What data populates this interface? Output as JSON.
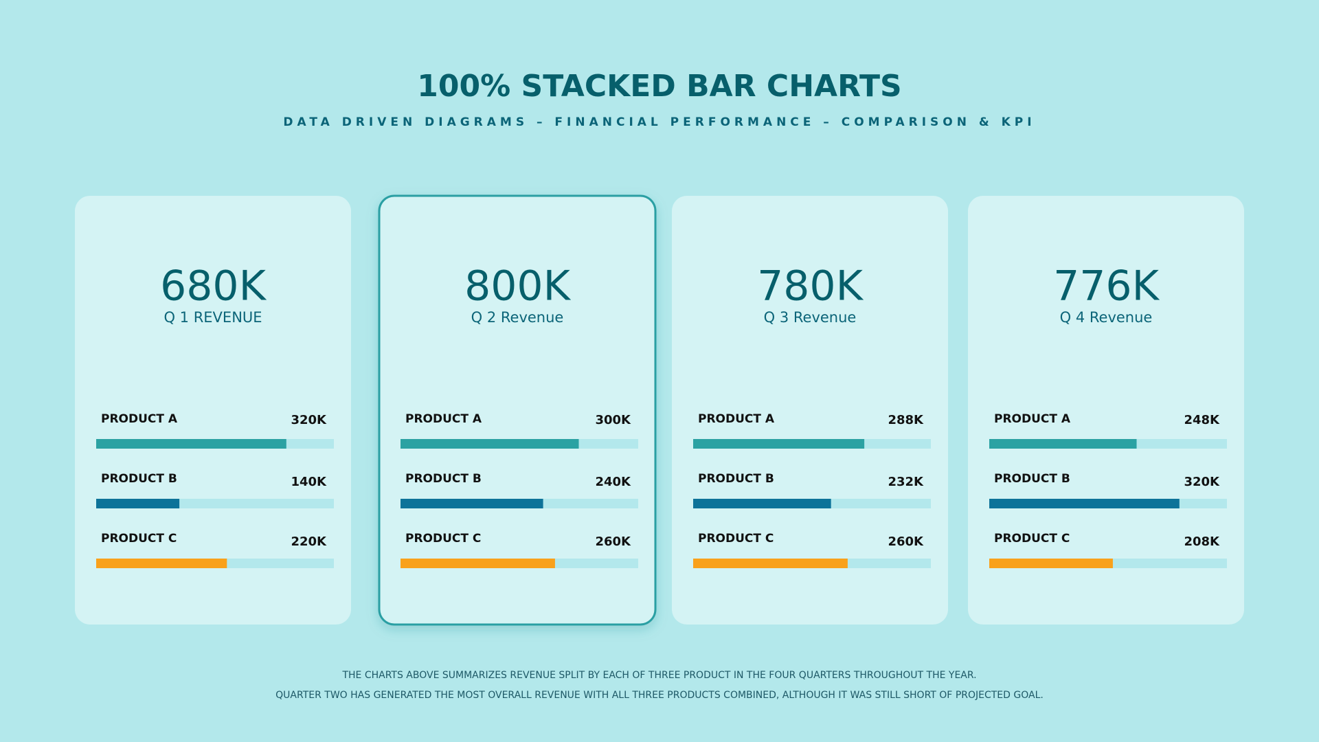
{
  "title": "100% STACKED BAR CHARTS",
  "subtitle": "DATA DRIVEN DIAGRAMS – FINANCIAL PERFORMANCE – COMPARISON & KPI",
  "notes": [
    "THE CHARTS ABOVE SUMMARIZES REVENUE SPLIT BY EACH OF THREE PRODUCT IN THE FOUR QUARTERS THROUGHOUT THE YEAR.",
    "QUARTER TWO HAS GENERATED THE MOST OVERALL REVENUE WITH ALL THREE PRODUCTS COMBINED, ALTHOUGH IT WAS STILL SHORT OF PROJECTED GOAL."
  ],
  "chart_data": [
    {
      "type": "bar",
      "orientation": "horizontal",
      "title": "680K",
      "subtitle": "Q 1 REVENUE",
      "highlight": false,
      "categories": [
        "PRODUCT A",
        "PRODUCT B",
        "PRODUCT C"
      ],
      "values": [
        320000,
        140000,
        220000
      ],
      "value_labels": [
        "320K",
        "140K",
        "220K"
      ],
      "colors": [
        "#2ba2a3",
        "#0d7399",
        "#f9a11b"
      ],
      "xlim": [
        0,
        400000
      ]
    },
    {
      "type": "bar",
      "orientation": "horizontal",
      "title": "800K",
      "subtitle": "Q 2 Revenue",
      "highlight": true,
      "categories": [
        "PRODUCT A",
        "PRODUCT B",
        "PRODUCT C"
      ],
      "values": [
        300000,
        240000,
        260000
      ],
      "value_labels": [
        "300K",
        "240K",
        "260K"
      ],
      "colors": [
        "#2ba2a3",
        "#0d7399",
        "#f9a11b"
      ],
      "xlim": [
        0,
        400000
      ]
    },
    {
      "type": "bar",
      "orientation": "horizontal",
      "title": "780K",
      "subtitle": "Q 3 Revenue",
      "highlight": false,
      "categories": [
        "PRODUCT A",
        "PRODUCT B",
        "PRODUCT C"
      ],
      "values": [
        288000,
        232000,
        260000
      ],
      "value_labels": [
        "288K",
        "232K",
        "260K"
      ],
      "colors": [
        "#2ba2a3",
        "#0d7399",
        "#f9a11b"
      ],
      "xlim": [
        0,
        400000
      ]
    },
    {
      "type": "bar",
      "orientation": "horizontal",
      "title": "776K",
      "subtitle": "Q 4 Revenue",
      "highlight": false,
      "categories": [
        "PRODUCT A",
        "PRODUCT B",
        "PRODUCT C"
      ],
      "values": [
        248000,
        320000,
        208000
      ],
      "value_labels": [
        "248K",
        "320K",
        "208K"
      ],
      "colors": [
        "#2ba2a3",
        "#0d7399",
        "#f9a11b"
      ],
      "xlim": [
        0,
        400000
      ]
    }
  ]
}
